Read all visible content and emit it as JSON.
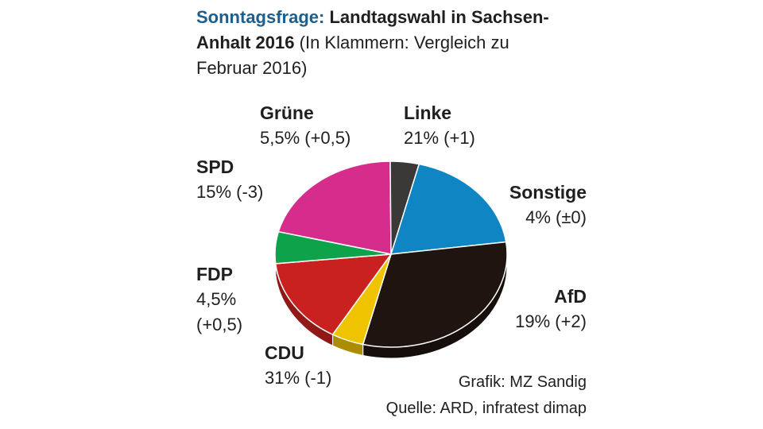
{
  "title": {
    "kicker": "Sonntagsfrage:",
    "headline": "Landtagswahl in Sachsen-Anhalt 2016",
    "note": "(In Klammern: Vergleich zu Februar 2016)"
  },
  "labels": {
    "gruene": {
      "party": "Grüne",
      "value": "5,5% (+0,5)"
    },
    "linke": {
      "party": "Linke",
      "value": "21% (+1)"
    },
    "spd": {
      "party": "SPD",
      "value": "15% (-3)"
    },
    "sonstige": {
      "party": "Sonstige",
      "value": "4% (±0)"
    },
    "fdp": {
      "party": "FDP",
      "value_line1": "4,5%",
      "value_line2": "(+0,5)"
    },
    "afd": {
      "party": "AfD",
      "value": "19% (+2)"
    },
    "cdu": {
      "party": "CDU",
      "value": "31% (-1)"
    }
  },
  "credits": {
    "grafik": "Grafik: MZ Sandig",
    "quelle": "Quelle: ARD, infratest dimap"
  },
  "chart_data": {
    "type": "pie",
    "title": "Sonntagsfrage: Landtagswahl in Sachsen-Anhalt 2016",
    "subtitle": "(In Klammern: Vergleich zu Februar 2016)",
    "unit": "%",
    "slices": [
      {
        "name": "Linke",
        "value": 21,
        "change": "+1",
        "color": "#d62d8c"
      },
      {
        "name": "Sonstige",
        "value": 4,
        "change": "±0",
        "color": "#3b3838"
      },
      {
        "name": "AfD",
        "value": 19,
        "change": "+2",
        "color": "#0f85c4"
      },
      {
        "name": "CDU",
        "value": 31,
        "change": "-1",
        "color": "#1f140f"
      },
      {
        "name": "FDP",
        "value": 4.5,
        "change": "+0,5",
        "color": "#efc300"
      },
      {
        "name": "SPD",
        "value": 15,
        "change": "-3",
        "color": "#c8211f"
      },
      {
        "name": "Grüne",
        "value": 5.5,
        "change": "+0,5",
        "color": "#0ea24a"
      }
    ]
  }
}
